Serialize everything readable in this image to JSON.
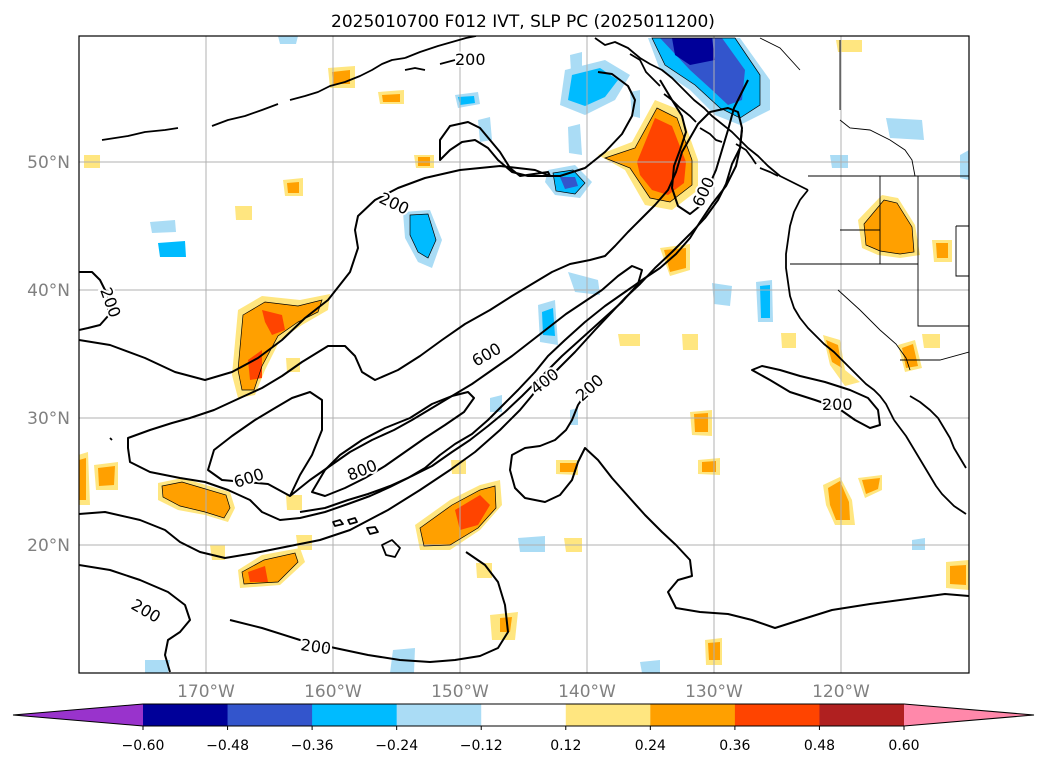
{
  "title": "2025010700 F012 IVT, SLP PC (2025011200)",
  "axes": {
    "lat_labels": [
      "50°N",
      "40°N",
      "30°N",
      "20°N"
    ],
    "lon_labels": [
      "170°W",
      "160°W",
      "150°W",
      "140°W",
      "130°W",
      "120°W"
    ],
    "tick_color": "#808080"
  },
  "contour_labels": [
    "200",
    "200",
    "200",
    "600",
    "600",
    "400",
    "200",
    "600",
    "800",
    "200",
    "200",
    "200"
  ],
  "colorbar": {
    "ticks": [
      "−0.60",
      "−0.48",
      "−0.36",
      "−0.24",
      "−0.12",
      "0.12",
      "0.24",
      "0.36",
      "0.48",
      "0.60"
    ],
    "colors": [
      "#9933cc",
      "#000099",
      "#3355cc",
      "#00bbff",
      "#aadcf5",
      "#ffffff",
      "#ffe680",
      "#ffa000",
      "#ff4400",
      "#b02020",
      "#ff88aa"
    ]
  },
  "palette": {
    "neg_light": "#aadcf5",
    "neg_mid": "#00bbff",
    "neg_strong": "#3355cc",
    "neg_max": "#000099",
    "pos_light": "#ffe680",
    "pos_mid": "#ffa000",
    "pos_strong": "#ff4400",
    "pos_max": "#b02020"
  }
}
